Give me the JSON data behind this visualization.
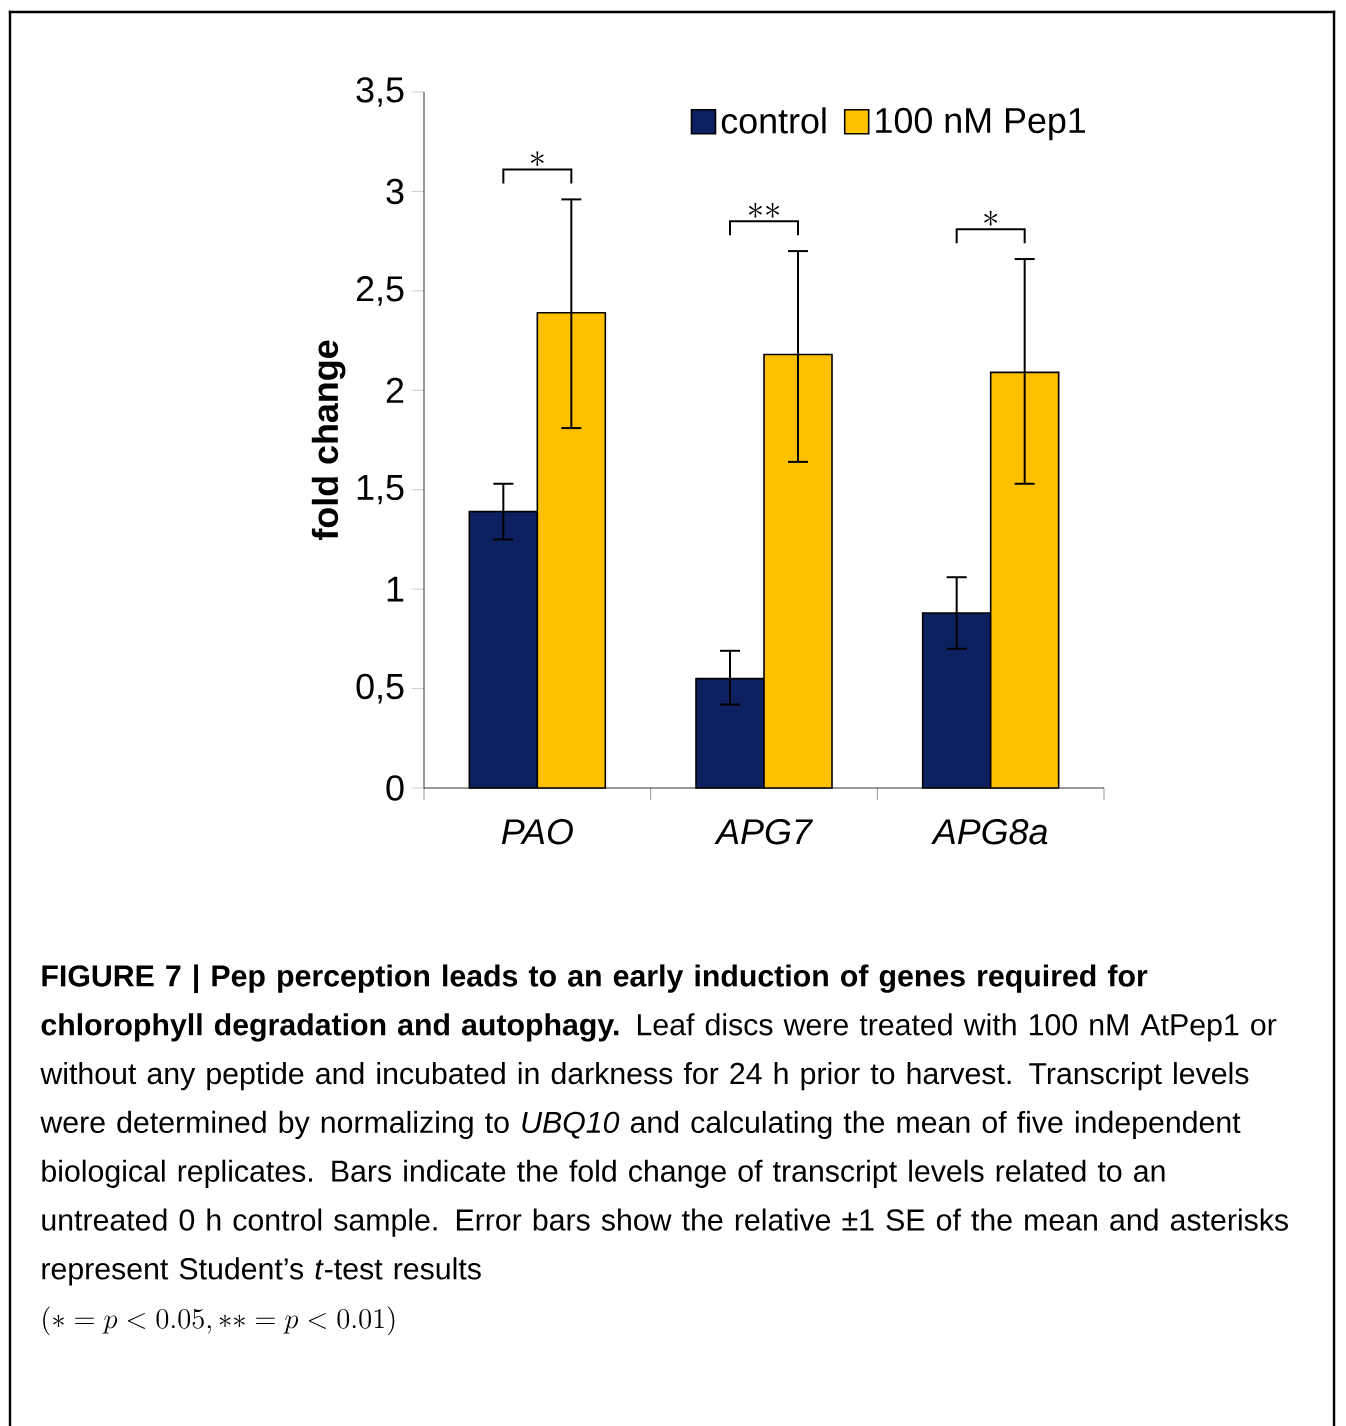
{
  "chart_data": {
    "type": "bar",
    "categories": [
      "PAO",
      "APG7",
      "APG8a"
    ],
    "ylabel": "fold change",
    "series": [
      {
        "name": "control",
        "color": "#0d2160",
        "values": [
          1.39,
          0.55,
          0.88
        ],
        "errors": [
          [
            1.25,
            1.53
          ],
          [
            0.42,
            0.69
          ],
          [
            0.7,
            1.06
          ]
        ]
      },
      {
        "name": "100 nM Pep1",
        "color": "#ffc000",
        "values": [
          2.39,
          2.18,
          2.09
        ],
        "errors": [
          [
            1.81,
            2.96
          ],
          [
            1.64,
            2.7
          ],
          [
            1.53,
            2.66
          ]
        ]
      }
    ],
    "ylim": [
      0,
      3.5
    ],
    "yticks": [
      0,
      {
        "value": 0.5,
        "label": "0,5"
      },
      1,
      {
        "value": 1.5,
        "label": "1,5"
      },
      2,
      {
        "value": 2.5,
        "label": "2,5"
      },
      3,
      {
        "value": 3.5,
        "label": "3,5"
      }
    ],
    "legend": "top right",
    "annotations": [
      "**FIGURE 7 | Pep perception leads to an early induction of genes required for chlorophyll degradation and autophagy.** Leaf discs were treated with 100 nM AtPep1 or without any peptide and incubated in darkness for 24 h prior to harvest. Transcript levels were determined by normalizing to *UBQ10* and calculating the mean of five independent biological replicates. Bars indicate the fold change of transcript levels related to an untreated 0 h control sample. Error bars show the relative ±1 SE of the mean and asterisks represent Student’s *t*-test results",
      "(* = p < 0.05, ** = p < 0.01)",
      "*",
      "**",
      "*"
    ]
  }
}
